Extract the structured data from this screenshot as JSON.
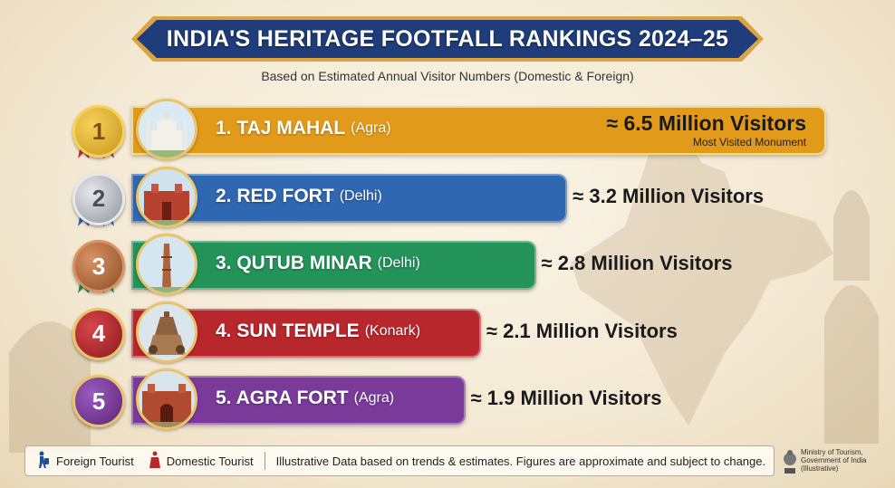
{
  "title": "INDIA'S HERITAGE FOOTFALL RANKINGS 2024–25",
  "subtitle": "Based on Estimated Annual Visitor Numbers (Domestic & Foreign)",
  "chart_data": {
    "type": "bar",
    "orientation": "horizontal",
    "categories": [
      "TAJ MAHAL",
      "RED FORT",
      "QUTUB MINAR",
      "SUN TEMPLE",
      "AGRA FORT"
    ],
    "values": [
      6.5,
      3.2,
      2.8,
      2.1,
      1.9
    ],
    "unit": "Million Visitors",
    "title": "INDIA'S HERITAGE FOOTFALL RANKINGS 2024–25",
    "subtitle": "Based on Estimated Annual Visitor Numbers (Domestic & Foreign)",
    "xlabel": "",
    "ylabel": "",
    "grid": false
  },
  "rows": [
    {
      "rank": "1",
      "name": "1. TAJ MAHAL",
      "city": "(Agra)",
      "value_label": "≈ 6.5 Million Visitors",
      "note": "Most Visited Monument",
      "color": "#e29a1a",
      "medal": "gold"
    },
    {
      "rank": "2",
      "name": "2. RED FORT",
      "city": "(Delhi)",
      "value_label": "≈ 3.2 Million Visitors",
      "note": "",
      "color": "#2f67b0",
      "medal": "silver"
    },
    {
      "rank": "3",
      "name": "3. QUTUB MINAR",
      "city": "(Delhi)",
      "value_label": "≈ 2.8 Million Visitors",
      "note": "",
      "color": "#23935a",
      "medal": "bronze"
    },
    {
      "rank": "4",
      "name": "4. SUN TEMPLE",
      "city": "(Konark)",
      "value_label": "≈ 2.1 Million Visitors",
      "note": "",
      "color": "#b8272c",
      "medal": "red"
    },
    {
      "rank": "5",
      "name": "5. AGRA FORT",
      "city": "(Agra)",
      "value_label": "≈ 1.9 Million Visitors",
      "note": "",
      "color": "#7a3a9a",
      "medal": "purple"
    }
  ],
  "footer": {
    "foreign_label": "Foreign Tourist",
    "domestic_label": "Domestic Tourist",
    "disclaimer": "Illustrative Data based on trends & estimates. Figures are approximate and subject to change.",
    "ministry_line1": "Ministry of Tourism,",
    "ministry_line2": "Government of India",
    "ministry_line3": "(Illustrative)"
  },
  "colors": {
    "banner": "#1f3d7a",
    "banner_border": "#d9a441",
    "gold": "#e0a820",
    "silver": "#b8bcc4",
    "bronze": "#b06a3a"
  }
}
